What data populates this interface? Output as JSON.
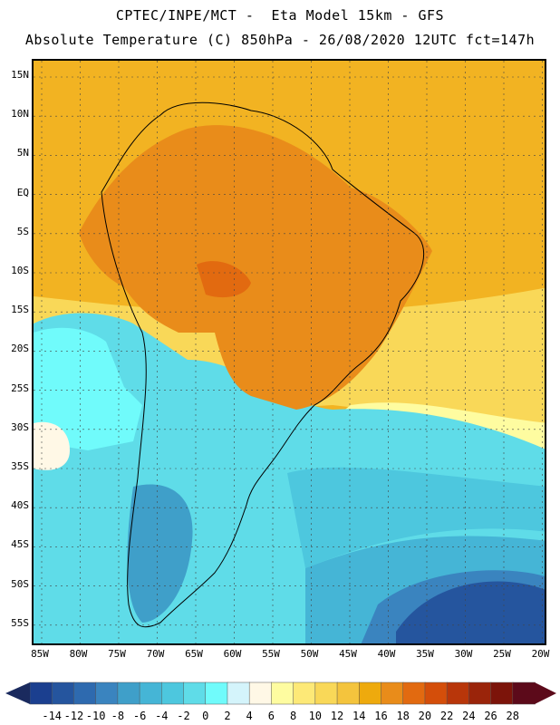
{
  "header": {
    "title_line1": "CPTEC/INPE/MCT -  Eta Model 15km - GFS",
    "title_line2": "Absolute Temperature (C) 850hPa - 26/08/2020 12UTC fct=147h"
  },
  "map": {
    "lat_labels": [
      "15N",
      "10N",
      "5N",
      "EQ",
      "5S",
      "10S",
      "15S",
      "20S",
      "25S",
      "30S",
      "35S",
      "40S",
      "45S",
      "50S",
      "55S"
    ],
    "lon_labels": [
      "85W",
      "80W",
      "75W",
      "70W",
      "65W",
      "60W",
      "55W",
      "50W",
      "45W",
      "40W",
      "35W",
      "30W",
      "25W",
      "20W"
    ]
  },
  "legend": {
    "labels": [
      "-14",
      "-12",
      "-10",
      "-8",
      "-6",
      "-4",
      "-2",
      "0",
      "2",
      "4",
      "6",
      "8",
      "10",
      "12",
      "14",
      "16",
      "18",
      "20",
      "22",
      "24",
      "26",
      "28"
    ],
    "colors": [
      "#1b3f8f",
      "#25559e",
      "#2e6aaf",
      "#3a84bf",
      "#3f9fc9",
      "#45b5d6",
      "#4dc7de",
      "#5fdce8",
      "#70fbfb",
      "#d4f4fb",
      "#fff8e6",
      "#fefca0",
      "#fde977",
      "#f9d858",
      "#f4c43d",
      "#eeaa0d",
      "#e98c1a",
      "#e26a10",
      "#d44e0a",
      "#b8360a",
      "#9a240a",
      "#7c140a",
      "#5c0a1a"
    ],
    "arrow_left_color": "#1a2a5e",
    "arrow_right_color": "#5c0a1a"
  }
}
